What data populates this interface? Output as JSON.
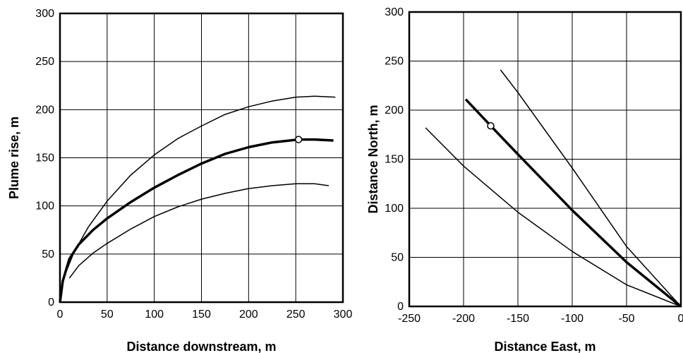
{
  "chart_data": [
    {
      "type": "line",
      "title": "",
      "xlabel": "Distance downstream, m",
      "ylabel": "Plume rise, m",
      "xlim": [
        0,
        300
      ],
      "ylim": [
        0,
        300
      ],
      "xticks": [
        0,
        50,
        100,
        150,
        200,
        250,
        300
      ],
      "yticks": [
        0,
        50,
        100,
        150,
        200,
        250,
        300
      ],
      "grid": true,
      "series": [
        {
          "role": "upper",
          "line": "thin",
          "points": [
            [
              5,
              28
            ],
            [
              15,
              52
            ],
            [
              30,
              78
            ],
            [
              50,
              105
            ],
            [
              75,
              132
            ],
            [
              100,
              153
            ],
            [
              125,
              170
            ],
            [
              150,
              183
            ],
            [
              175,
              195
            ],
            [
              200,
              203
            ],
            [
              225,
              209
            ],
            [
              250,
              213
            ],
            [
              270,
              214
            ],
            [
              292,
              213
            ]
          ]
        },
        {
          "role": "central",
          "line": "thick",
          "points": [
            [
              0,
              0
            ],
            [
              3,
              22
            ],
            [
              10,
              45
            ],
            [
              20,
              60
            ],
            [
              35,
              75
            ],
            [
              50,
              87
            ],
            [
              75,
              104
            ],
            [
              100,
              119
            ],
            [
              125,
              132
            ],
            [
              150,
              144
            ],
            [
              175,
              154
            ],
            [
              200,
              161
            ],
            [
              225,
              166
            ],
            [
              253,
              169
            ],
            [
              270,
              169
            ],
            [
              290,
              168
            ]
          ],
          "marker": [
            253,
            169
          ]
        },
        {
          "role": "lower",
          "line": "thin",
          "points": [
            [
              10,
              25
            ],
            [
              20,
              38
            ],
            [
              35,
              51
            ],
            [
              50,
              61
            ],
            [
              75,
              76
            ],
            [
              100,
              89
            ],
            [
              125,
              99
            ],
            [
              150,
              107
            ],
            [
              175,
              113
            ],
            [
              200,
              118
            ],
            [
              225,
              121
            ],
            [
              250,
              123
            ],
            [
              270,
              123
            ],
            [
              285,
              121
            ]
          ]
        }
      ]
    },
    {
      "type": "line",
      "title": "",
      "xlabel": "Distance East, m",
      "ylabel": "Distance North, m",
      "xlim": [
        -250,
        0
      ],
      "ylim": [
        0,
        300
      ],
      "xticks": [
        -250,
        -200,
        -150,
        -100,
        -50,
        0
      ],
      "yticks": [
        0,
        50,
        100,
        150,
        200,
        250,
        300
      ],
      "grid": true,
      "series": [
        {
          "role": "central",
          "line": "thick",
          "points": [
            [
              -198,
              211
            ],
            [
              -175,
              184
            ],
            [
              -150,
              155
            ],
            [
              -100,
              98
            ],
            [
              -50,
              45
            ],
            [
              0,
              0
            ]
          ],
          "marker": [
            -175,
            184
          ]
        },
        {
          "role": "left",
          "line": "thin",
          "points": [
            [
              -235,
              182
            ],
            [
              -200,
              143
            ],
            [
              -150,
              96
            ],
            [
              -100,
              56
            ],
            [
              -50,
              22
            ],
            [
              0,
              0
            ]
          ]
        },
        {
          "role": "right",
          "line": "thin",
          "points": [
            [
              -166,
              241
            ],
            [
              -150,
              218
            ],
            [
              -100,
              141
            ],
            [
              -50,
              61
            ],
            [
              0,
              0
            ]
          ]
        }
      ]
    }
  ]
}
